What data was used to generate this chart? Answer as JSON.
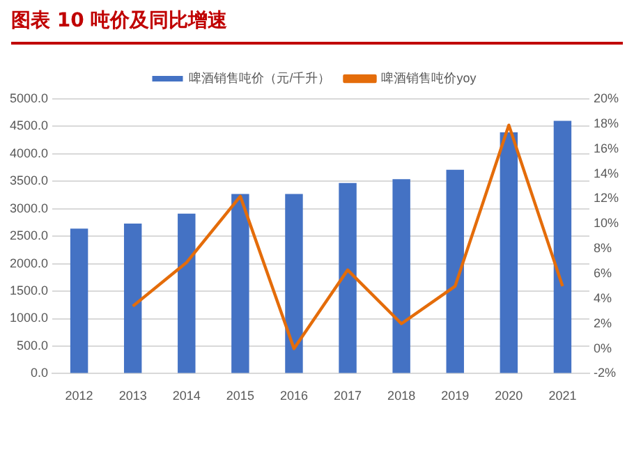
{
  "chart_data": {
    "type": "bar",
    "title": "图表 10 吨价及同比增速",
    "categories": [
      "2012",
      "2013",
      "2014",
      "2015",
      "2016",
      "2017",
      "2018",
      "2019",
      "2020",
      "2021"
    ],
    "series": [
      {
        "name": "啤酒销售吨价（元/千升）",
        "color": "#4472c4",
        "values": [
          2640,
          2730,
          2910,
          3270,
          3270,
          3470,
          3540,
          3710,
          4390,
          4600
        ]
      },
      {
        "name": "啤酒销售吨价yoy",
        "type": "line",
        "axis": "y2",
        "color": "#e46c0a",
        "values": [
          null,
          3.4,
          6.9,
          12.2,
          0.0,
          6.3,
          2.0,
          5.0,
          17.9,
          5.0
        ]
      }
    ],
    "ylim": [
      0,
      5000
    ],
    "yticks": [
      {
        "value": 0,
        "label": "0.0"
      },
      {
        "value": 500,
        "label": "500.0"
      },
      {
        "value": 1000,
        "label": "1000.0"
      },
      {
        "value": 1500,
        "label": "1500.0"
      },
      {
        "value": 2000,
        "label": "2000.0"
      },
      {
        "value": 2500,
        "label": "2500.0"
      },
      {
        "value": 3000,
        "label": "3000.0"
      },
      {
        "value": 3500,
        "label": "3500.0"
      },
      {
        "value": 4000,
        "label": "4000.0"
      },
      {
        "value": 4500,
        "label": "4500.0"
      },
      {
        "value": 5000,
        "label": "5000.0"
      }
    ],
    "y2lim": [
      -2,
      20
    ],
    "y2ticks": [
      {
        "value": -2,
        "label": "-2%"
      },
      {
        "value": 0,
        "label": "0%"
      },
      {
        "value": 2,
        "label": "2%"
      },
      {
        "value": 4,
        "label": "4%"
      },
      {
        "value": 6,
        "label": "6%"
      },
      {
        "value": 8,
        "label": "8%"
      },
      {
        "value": 10,
        "label": "10%"
      },
      {
        "value": 12,
        "label": "12%"
      },
      {
        "value": 14,
        "label": "14%"
      },
      {
        "value": 16,
        "label": "16%"
      },
      {
        "value": 18,
        "label": "18%"
      },
      {
        "value": 20,
        "label": "20%"
      }
    ],
    "grid": "y",
    "legend": "top",
    "marker": "none",
    "line_style": "solid"
  }
}
